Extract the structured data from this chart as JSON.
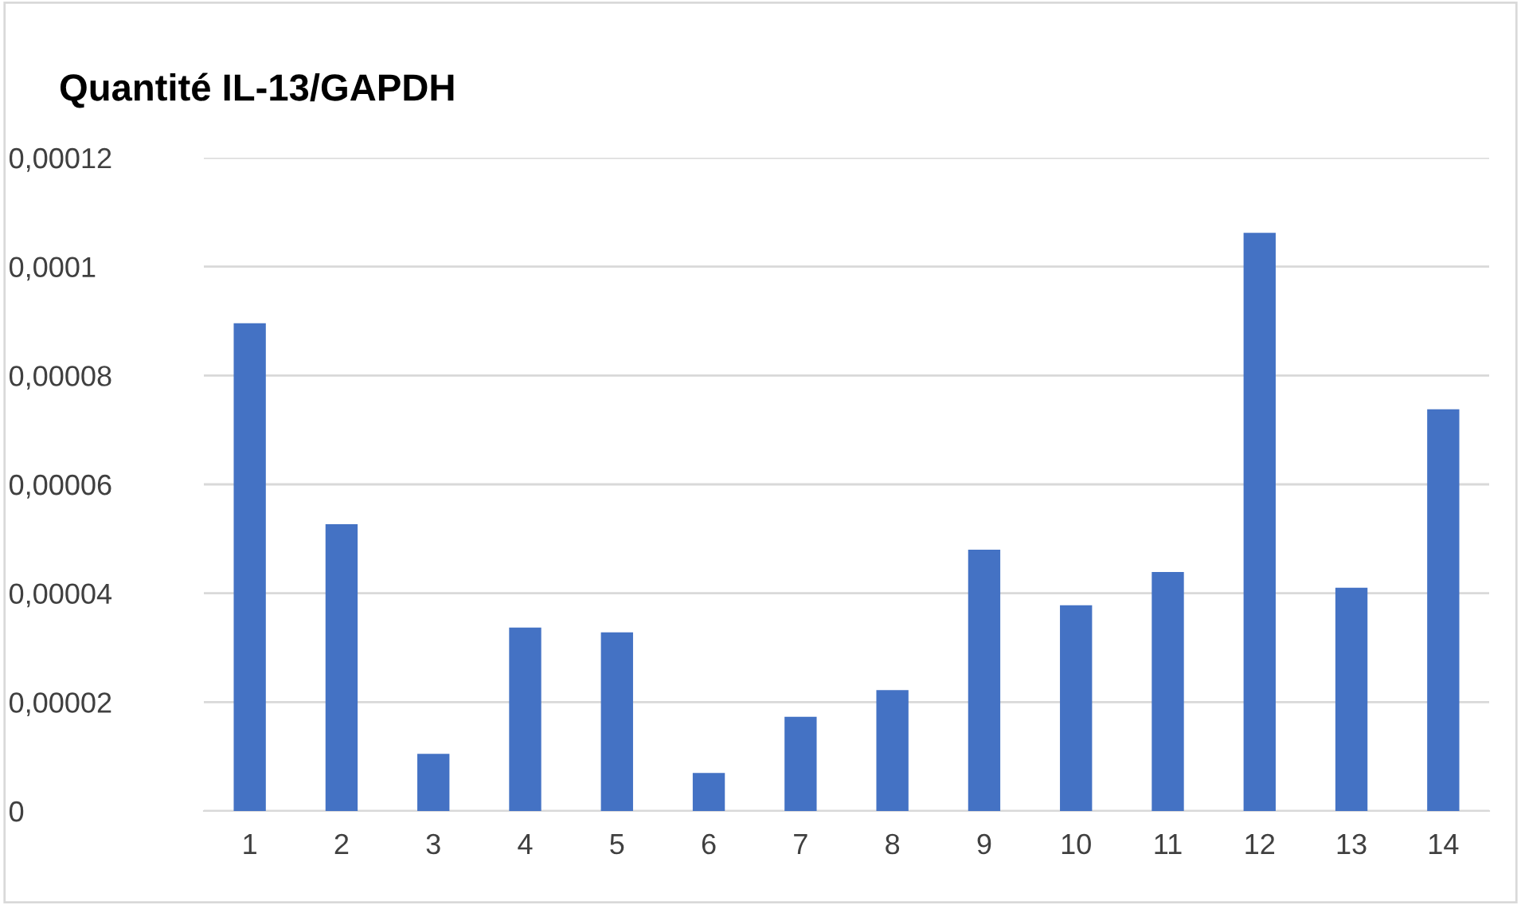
{
  "chart_data": {
    "type": "bar",
    "title": "Quantité IL-13/GAPDH",
    "categories": [
      "1",
      "2",
      "3",
      "4",
      "5",
      "6",
      "7",
      "8",
      "9",
      "10",
      "11",
      "12",
      "13",
      "14"
    ],
    "values": [
      8.96e-05,
      5.27e-05,
      1.05e-05,
      3.37e-05,
      3.28e-05,
      7e-06,
      1.73e-05,
      2.22e-05,
      4.8e-05,
      3.78e-05,
      4.39e-05,
      0.0001062,
      4.1e-05,
      7.38e-05
    ],
    "color": "#4472c4",
    "ylim": [
      0,
      0.00012
    ],
    "yticks": [
      0,
      {
        "value": 2e-05,
        "label": "0,00002"
      },
      {
        "value": 4e-05,
        "label": "0,00004"
      },
      {
        "value": 6e-05,
        "label": "0,00006"
      },
      {
        "value": 8e-05,
        "label": "0,00008"
      },
      {
        "value": 0.0001,
        "label": "0,0001"
      },
      {
        "value": 0.00012,
        "label": "0,00012"
      }
    ],
    "grid": "y"
  }
}
